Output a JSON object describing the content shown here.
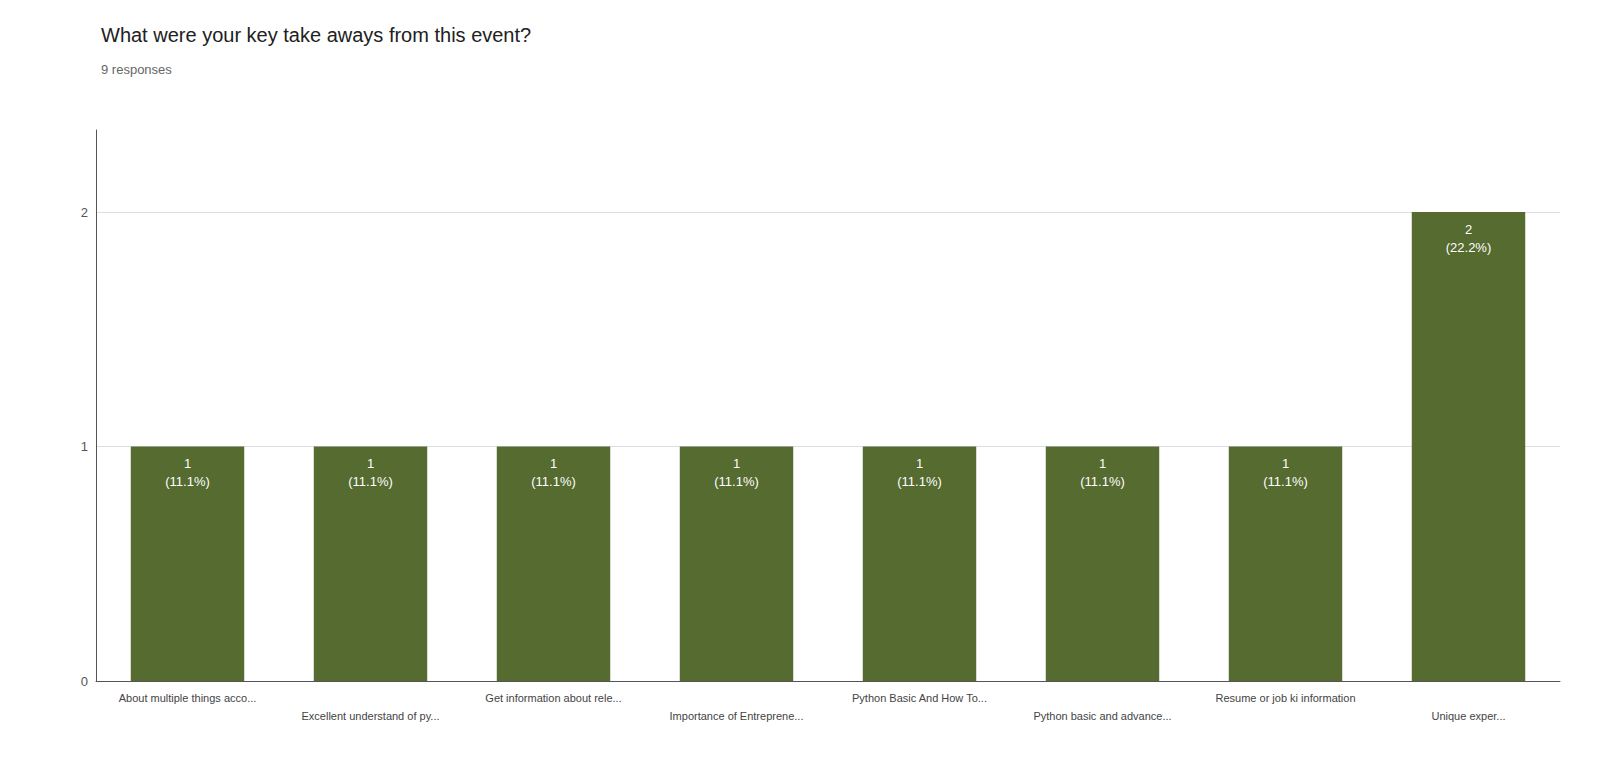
{
  "chart_data": {
    "type": "bar",
    "title": "What were your key take aways from this event?",
    "subtitle": "9 responses",
    "categories": [
      "About multiple things acco...",
      "Excellent understand of py...",
      "Get information about rele...",
      "Importance of Entreprene...",
      "Python Basic And How To...",
      "Python basic and advance...",
      "Resume or job ki information",
      "Unique exper..."
    ],
    "values": [
      1,
      1,
      1,
      1,
      1,
      1,
      1,
      2
    ],
    "value_labels": [
      "1\n(11.1%)",
      "1\n(11.1%)",
      "1\n(11.1%)",
      "1\n(11.1%)",
      "1\n(11.1%)",
      "1\n(11.1%)",
      "1\n(11.1%)",
      "2\n(22.2%)"
    ],
    "data_labels": true,
    "color": "#556B2F",
    "ylim": [
      0,
      2.35
    ],
    "yticks": [
      0,
      1,
      2
    ],
    "grid": true
  }
}
